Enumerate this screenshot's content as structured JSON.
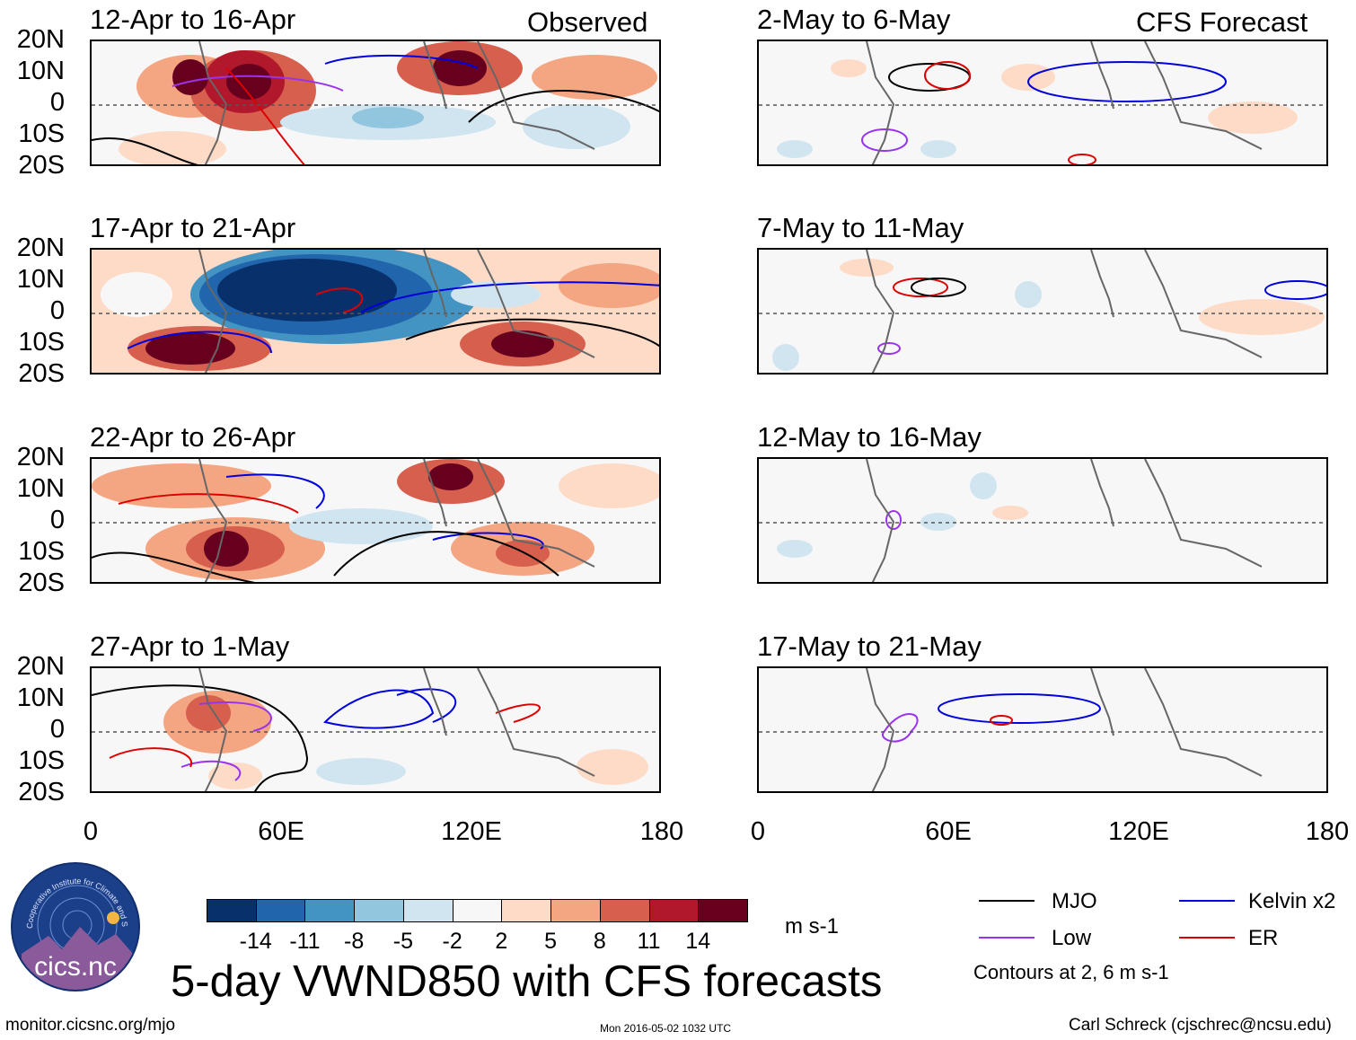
{
  "panel_headers": {
    "observed": "Observed",
    "forecast": "CFS Forecast"
  },
  "panels": {
    "left": [
      {
        "label": "12-Apr to 16-Apr"
      },
      {
        "label": "17-Apr to 21-Apr"
      },
      {
        "label": "22-Apr to 26-Apr"
      },
      {
        "label": "27-Apr to 1-May"
      }
    ],
    "right": [
      {
        "label": "2-May to 6-May"
      },
      {
        "label": "7-May to 11-May"
      },
      {
        "label": "12-May to 16-May"
      },
      {
        "label": "17-May to 21-May"
      }
    ]
  },
  "axes": {
    "lat_labels": [
      "20N",
      "10N",
      "0",
      "10S",
      "20S"
    ],
    "lon_labels": [
      "0",
      "60E",
      "120E",
      "180"
    ]
  },
  "colorbar": {
    "ticks": [
      "-14",
      "-11",
      "-8",
      "-5",
      "-2",
      "2",
      "5",
      "8",
      "11",
      "14"
    ],
    "units": "m s-1",
    "colors": [
      "#08306b",
      "#2166ac",
      "#4393c3",
      "#92c5de",
      "#d1e5f0",
      "#f7f7f7",
      "#fddbc7",
      "#f4a582",
      "#d6604d",
      "#b2182b",
      "#67001f"
    ]
  },
  "title": "5-day VWND850 with CFS forecasts",
  "legend": {
    "mjo": "MJO",
    "kelvin": "Kelvin x2",
    "low": "Low",
    "er": "ER",
    "note": "Contours at 2, 6 m s-1",
    "colors": {
      "mjo": "#000000",
      "kelvin": "#0000dd",
      "low": "#9933ee",
      "er": "#dd0000"
    }
  },
  "logo": {
    "text": "cics.nc",
    "ring_text": "Cooperative Institute for Climate and Satellites"
  },
  "footer": {
    "url": "monitor.cicsnc.org/mjo",
    "timestamp": "Mon 2016-05-02 1032 UTC",
    "credit": "Carl Schreck (cjschrec@ncsu.edu)"
  }
}
